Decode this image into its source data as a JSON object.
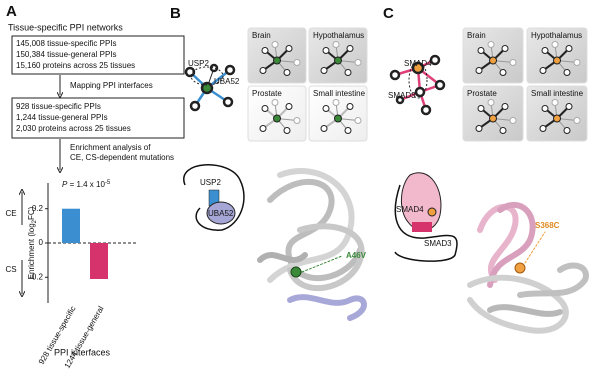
{
  "panels": {
    "a": "A",
    "b": "B",
    "c": "C"
  },
  "workflow": {
    "title": "Tissue-specific PPI networks",
    "box1": [
      "145,008 tissue-specific PPIs",
      "150,384 tissue-general PPIs",
      "15,160 proteins across 25 tissues"
    ],
    "step1": "Mapping PPI interfaces",
    "box2": [
      "928 tissue-specific PPIs",
      "1,244 tissue-general PPIs",
      "2,030 proteins across 25 tissues"
    ],
    "step2": [
      "Enrichment analysis of",
      "CE, CS-dependent mutations"
    ]
  },
  "chart_data": {
    "type": "bar",
    "pvalue": [
      "P",
      " = 1.4 x 10",
      "-5"
    ],
    "ylabel": [
      "Enrichment (log",
      "2",
      "FC)"
    ],
    "ce": "CE",
    "cs": "CS",
    "categories": [
      "928 tissue-specific",
      "1244 tissue-general"
    ],
    "values": [
      0.2,
      -0.21
    ],
    "colors": [
      "#3b8fd0",
      "#d6336c"
    ],
    "ylim": [
      -0.35,
      0.35
    ],
    "yticks": [
      0.2,
      0,
      -0.2
    ],
    "xlabel": "PPI interfaces"
  },
  "panel_b": {
    "protein1": "USP2",
    "protein2": "UBA52",
    "tissues": [
      "Brain",
      "Hypothalamus",
      "Prostate",
      "Small intestine"
    ],
    "protein3": "USP2",
    "protein4": "UBA52",
    "mutation": "A46V"
  },
  "panel_c": {
    "protein1": "SMAD4",
    "protein2": "SMAD3",
    "tissues": [
      "Brain",
      "Hypothalamus",
      "Prostate",
      "Small intestine"
    ],
    "protein3": "SMAD4",
    "protein4": "SMAD3",
    "mutation": "S368C"
  }
}
